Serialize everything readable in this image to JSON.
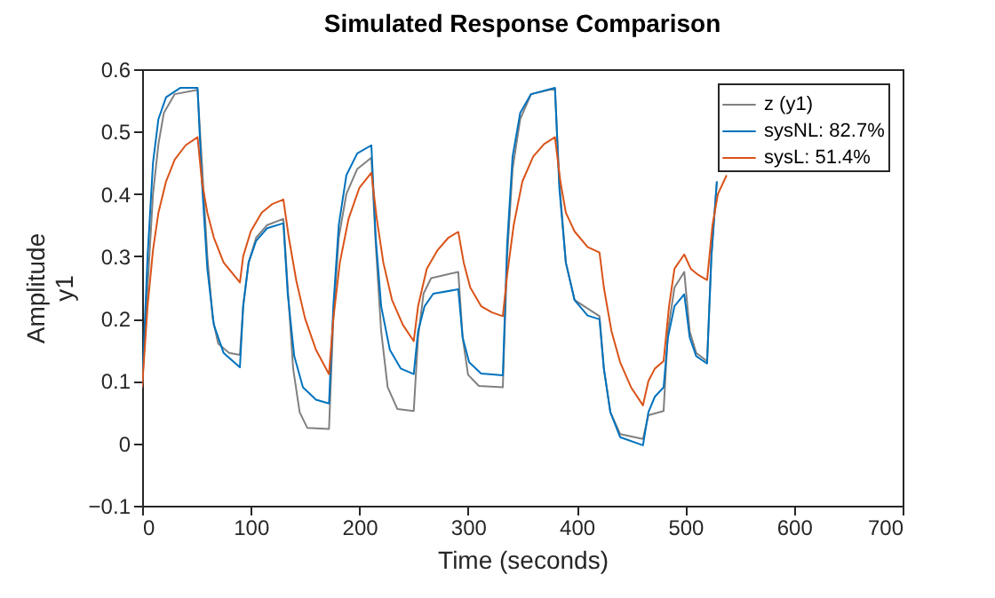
{
  "chart_data": {
    "type": "line",
    "title": "Simulated Response Comparison",
    "xlabel": "Time (seconds)",
    "ylabel": "Amplitude\ny1",
    "xlim": [
      0,
      700
    ],
    "xticks": [
      0,
      100,
      200,
      300,
      400,
      500,
      600,
      700
    ],
    "ylim": [
      -0.1,
      0.6
    ],
    "yticks": [
      -0.1,
      {
        "value": 0,
        "label": "0"
      },
      0.1,
      0.2,
      0.3,
      0.4,
      0.5,
      0.6
    ],
    "grid": false,
    "legend": "top right",
    "line_style": "solid",
    "marker": "none",
    "series": [
      {
        "name": "z (y1)",
        "color": "#808080",
        "x": [
          0,
          5,
          10,
          15,
          20,
          30,
          51,
          55,
          60,
          65,
          70,
          80,
          90,
          93,
          98,
          105,
          115,
          130,
          134,
          139,
          145,
          152,
          172,
          176,
          181,
          188,
          198,
          211,
          215,
          220,
          226,
          235,
          250,
          254,
          259,
          266,
          291,
          295,
          300,
          310,
          332,
          336,
          341,
          348,
          358,
          380,
          384,
          390,
          398,
          421,
          425,
          431,
          440,
          461,
          466,
          480,
          484,
          490,
          499,
          504,
          510,
          520,
          524,
          529
        ],
        "values": [
          0.09,
          0.25,
          0.4,
          0.48,
          0.53,
          0.56,
          0.567,
          0.45,
          0.3,
          0.2,
          0.16,
          0.145,
          0.142,
          0.22,
          0.29,
          0.33,
          0.35,
          0.36,
          0.25,
          0.12,
          0.05,
          0.025,
          0.023,
          0.2,
          0.33,
          0.4,
          0.44,
          0.458,
          0.32,
          0.18,
          0.09,
          0.055,
          0.052,
          0.17,
          0.24,
          0.265,
          0.275,
          0.17,
          0.11,
          0.092,
          0.09,
          0.3,
          0.44,
          0.52,
          0.56,
          0.569,
          0.42,
          0.29,
          0.23,
          0.204,
          0.12,
          0.05,
          0.015,
          0.007,
          0.045,
          0.052,
          0.18,
          0.25,
          0.275,
          0.18,
          0.145,
          0.132,
          0.3,
          0.42
        ]
      },
      {
        "name": "sysNL: 82.7%",
        "color": "#0072bd",
        "x": [
          0,
          5,
          10,
          15,
          22,
          35,
          51,
          55,
          60,
          66,
          75,
          90,
          93,
          98,
          105,
          115,
          130,
          134,
          140,
          148,
          160,
          172,
          176,
          181,
          188,
          198,
          211,
          215,
          220,
          228,
          238,
          250,
          254,
          260,
          268,
          291,
          295,
          301,
          312,
          332,
          336,
          341,
          348,
          358,
          380,
          384,
          390,
          398,
          410,
          421,
          425,
          431,
          440,
          461,
          466,
          472,
          480,
          484,
          490,
          499,
          504,
          510,
          520,
          524,
          529
        ],
        "values": [
          0.09,
          0.3,
          0.45,
          0.52,
          0.555,
          0.57,
          0.57,
          0.42,
          0.28,
          0.19,
          0.145,
          0.122,
          0.22,
          0.29,
          0.325,
          0.345,
          0.353,
          0.24,
          0.14,
          0.09,
          0.07,
          0.064,
          0.22,
          0.35,
          0.43,
          0.465,
          0.478,
          0.33,
          0.22,
          0.15,
          0.12,
          0.111,
          0.18,
          0.22,
          0.24,
          0.247,
          0.17,
          0.13,
          0.112,
          0.109,
          0.32,
          0.46,
          0.53,
          0.56,
          0.57,
          0.41,
          0.29,
          0.23,
          0.205,
          0.199,
          0.12,
          0.05,
          0.01,
          -0.003,
          0.05,
          0.075,
          0.09,
          0.17,
          0.22,
          0.239,
          0.17,
          0.14,
          0.128,
          0.3,
          0.42
        ]
      },
      {
        "name": "sysL: 51.4%",
        "color": "#d95319",
        "x": [
          0,
          5,
          10,
          15,
          22,
          30,
          40,
          51,
          55,
          60,
          66,
          75,
          90,
          93,
          100,
          110,
          120,
          130,
          135,
          142,
          150,
          160,
          172,
          176,
          182,
          190,
          200,
          211,
          216,
          222,
          230,
          240,
          250,
          254,
          262,
          272,
          282,
          291,
          296,
          302,
          312,
          322,
          332,
          336,
          342,
          350,
          360,
          370,
          380,
          385,
          390,
          398,
          410,
          421,
          425,
          432,
          440,
          450,
          461,
          466,
          472,
          480,
          485,
          490,
          499,
          505,
          512,
          520,
          525,
          530,
          538
        ],
        "values": [
          0.09,
          0.22,
          0.31,
          0.37,
          0.42,
          0.455,
          0.478,
          0.491,
          0.42,
          0.37,
          0.33,
          0.29,
          0.258,
          0.3,
          0.34,
          0.37,
          0.384,
          0.391,
          0.33,
          0.26,
          0.2,
          0.15,
          0.111,
          0.2,
          0.29,
          0.36,
          0.41,
          0.434,
          0.36,
          0.29,
          0.23,
          0.19,
          0.164,
          0.22,
          0.28,
          0.31,
          0.33,
          0.339,
          0.29,
          0.25,
          0.22,
          0.21,
          0.204,
          0.27,
          0.35,
          0.42,
          0.46,
          0.48,
          0.491,
          0.42,
          0.37,
          0.34,
          0.315,
          0.306,
          0.25,
          0.18,
          0.13,
          0.09,
          0.061,
          0.1,
          0.12,
          0.132,
          0.22,
          0.28,
          0.303,
          0.28,
          0.27,
          0.262,
          0.35,
          0.4,
          0.43
        ]
      }
    ]
  }
}
